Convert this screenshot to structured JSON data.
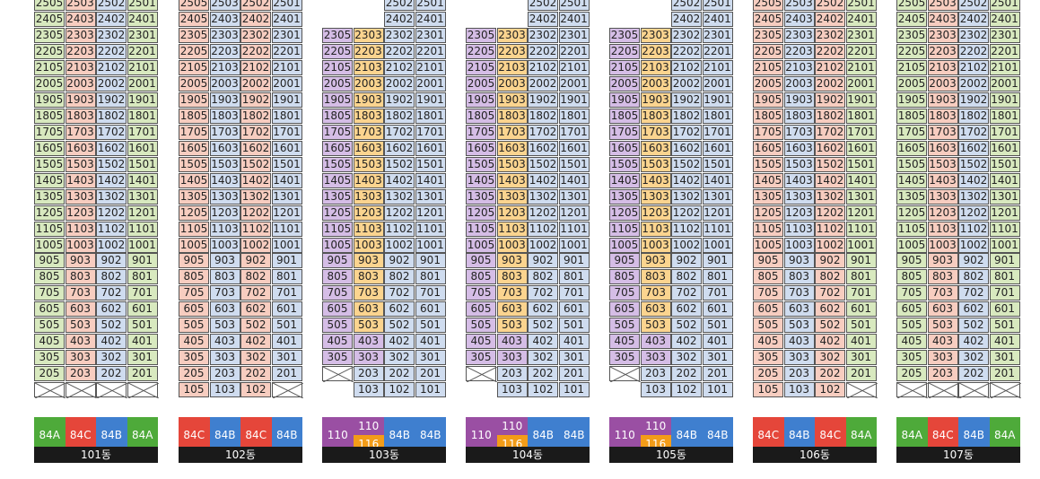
{
  "colors": {
    "green": "#d8e9bf",
    "pink": "#f7cdc0",
    "blue": "#cfdcef",
    "purple": "#d5bde6",
    "orange": "#fbd48f",
    "type_84A": "#4eaa3a",
    "type_84C": "#e5463a",
    "type_84B": "#3f7fcf",
    "type_110": "#9a4fa3",
    "type_116": "#f39c18"
  },
  "buildings": [
    {
      "name": "101동",
      "rows": 22,
      "lines": [
        "05",
        "03",
        "02",
        "01"
      ],
      "colors": [
        "green",
        "pink",
        "blue",
        "green"
      ],
      "missing": [],
      "xFloors": [
        1
      ],
      "xCells": [
        0,
        1,
        2,
        3
      ],
      "types": [
        {
          "label": "84A",
          "c": "type_84A"
        },
        {
          "label": "84C",
          "c": "type_84C"
        },
        {
          "label": "84B",
          "c": "type_84B"
        },
        {
          "label": "84A",
          "c": "type_84A"
        }
      ]
    },
    {
      "name": "102동",
      "rows": 22,
      "lines": [
        "05",
        "03",
        "02",
        "01"
      ],
      "colors": [
        "pink",
        "blue",
        "pink",
        "blue"
      ],
      "missing": [],
      "xFloors": [],
      "xCells": [],
      "bottomFloor": {
        "cells": [
          "105",
          "103",
          "102",
          null
        ]
      },
      "types": [
        {
          "label": "84C",
          "c": "type_84C"
        },
        {
          "label": "84B",
          "c": "type_84B"
        },
        {
          "label": "84C",
          "c": "type_84C"
        },
        {
          "label": "84B",
          "c": "type_84B"
        }
      ]
    },
    {
      "name": "103동",
      "rows": 23,
      "lines": [
        "05",
        "03",
        "02",
        "01"
      ],
      "colors": [
        "purple",
        "purple",
        "blue",
        "blue"
      ],
      "orangeCol": 1,
      "orangeRange": [
        5,
        23
      ],
      "types": [
        {
          "label": "110",
          "c": "type_110"
        },
        {
          "label": "110/116",
          "c": "split"
        },
        {
          "label": "84B",
          "c": "type_84B"
        },
        {
          "label": "84B",
          "c": "type_84B"
        }
      ]
    },
    {
      "name": "104동",
      "rows": 23,
      "lines": [
        "05",
        "03",
        "02",
        "01"
      ],
      "colors": [
        "purple",
        "purple",
        "blue",
        "blue"
      ],
      "orangeCol": 1,
      "orangeRange": [
        5,
        23
      ],
      "types": [
        {
          "label": "110",
          "c": "type_110"
        },
        {
          "label": "110/116",
          "c": "split"
        },
        {
          "label": "84B",
          "c": "type_84B"
        },
        {
          "label": "84B",
          "c": "type_84B"
        }
      ]
    },
    {
      "name": "105동",
      "rows": 23,
      "lines": [
        "05",
        "03",
        "02",
        "01"
      ],
      "colors": [
        "purple",
        "purple",
        "blue",
        "blue"
      ],
      "orangeCol": 1,
      "orangeRange": [
        5,
        23
      ],
      "types": [
        {
          "label": "110",
          "c": "type_110"
        },
        {
          "label": "110/116",
          "c": "split"
        },
        {
          "label": "84B",
          "c": "type_84B"
        },
        {
          "label": "84B",
          "c": "type_84B"
        }
      ]
    },
    {
      "name": "106동",
      "rows": 22,
      "lines": [
        "05",
        "03",
        "02",
        "01"
      ],
      "colors": [
        "pink",
        "blue",
        "pink",
        "green"
      ],
      "bottomFloor": {
        "cells": [
          "105",
          "103",
          "102",
          null
        ]
      },
      "types": [
        {
          "label": "84C",
          "c": "type_84C"
        },
        {
          "label": "84B",
          "c": "type_84B"
        },
        {
          "label": "84C",
          "c": "type_84C"
        },
        {
          "label": "84A",
          "c": "type_84A"
        }
      ]
    },
    {
      "name": "107동",
      "rows": 22,
      "lines": [
        "05",
        "03",
        "02",
        "01"
      ],
      "colors": [
        "green",
        "pink",
        "blue",
        "green"
      ],
      "xFloors": [
        1
      ],
      "types": [
        {
          "label": "84A",
          "c": "type_84A"
        },
        {
          "label": "84C",
          "c": "type_84C"
        },
        {
          "label": "84B",
          "c": "type_84B"
        },
        {
          "label": "84A",
          "c": "type_84A"
        }
      ]
    }
  ],
  "type_split": {
    "top": "110",
    "bottom": "116"
  }
}
